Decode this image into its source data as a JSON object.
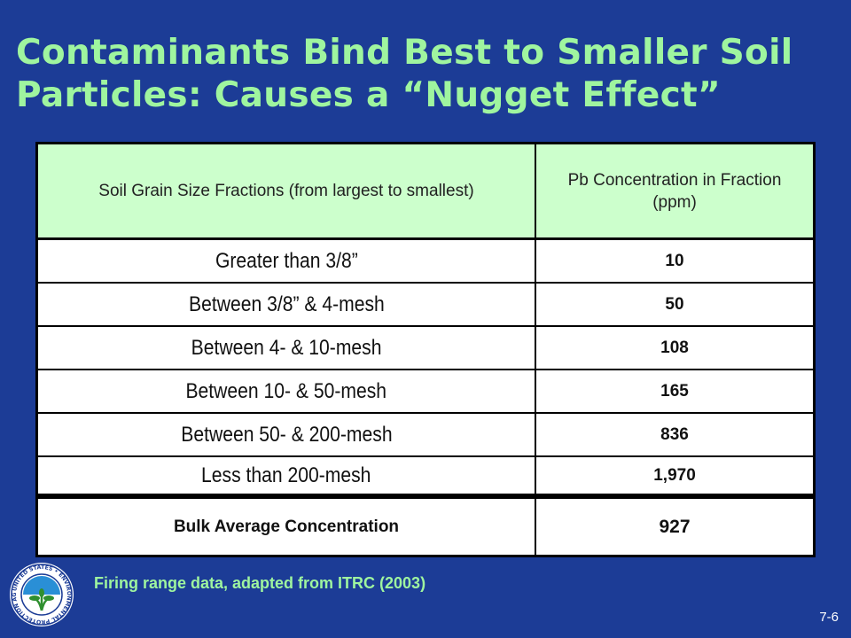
{
  "slide": {
    "title_line1": "Contaminants Bind Best to Smaller Soil",
    "title_line2": "Particles:  Causes a “Nugget Effect”",
    "source_note": "Firing range data, adapted from ITRC (2003)",
    "page_number": "7-6"
  },
  "table": {
    "headers": [
      "Soil Grain Size Fractions (from largest to smallest)",
      "Pb Concentration in Fraction (ppm)"
    ],
    "rows": [
      {
        "fraction": "Greater than 3/8”",
        "value": "10"
      },
      {
        "fraction": "Between 3/8” & 4-mesh",
        "value": "50"
      },
      {
        "fraction": "Between 4- & 10-mesh",
        "value": "108"
      },
      {
        "fraction": "Between 10- & 50-mesh",
        "value": "165"
      },
      {
        "fraction": "Between 50- & 200-mesh",
        "value": "836"
      },
      {
        "fraction": "Less than 200-mesh",
        "value": "1,970"
      }
    ],
    "bulk": {
      "label": "Bulk Average Concentration",
      "value": "927"
    }
  },
  "seal": {
    "icon": "epa-seal-icon",
    "ring_text": "UNITED STATES • ENVIRONMENTAL PROTECTION AGENCY"
  },
  "colors": {
    "background": "#1c3c96",
    "title": "#9ff59f",
    "header_fill": "#ccffcc"
  }
}
